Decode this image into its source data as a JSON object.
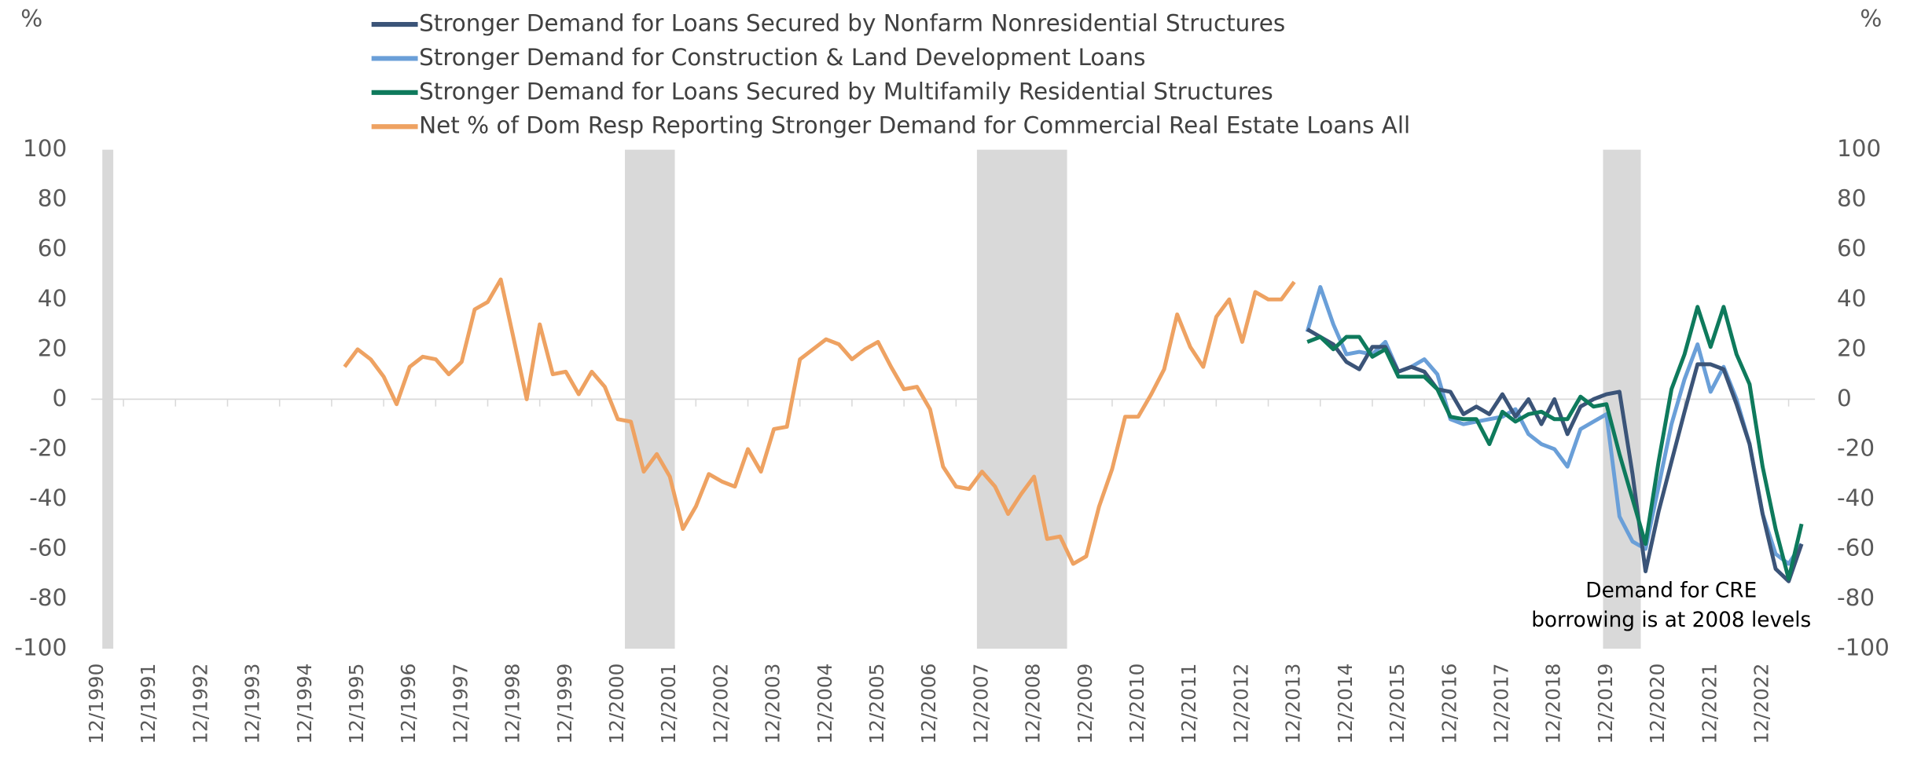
{
  "chart_data": {
    "type": "line",
    "y_label": "%",
    "y2_label": "%",
    "categories": [
      "12/1990",
      null,
      null,
      null,
      "12/1991",
      null,
      null,
      null,
      "12/1992",
      null,
      null,
      null,
      "12/1993",
      null,
      null,
      null,
      "12/1994",
      null,
      null,
      null,
      "12/1995",
      null,
      null,
      null,
      "12/1996",
      null,
      null,
      null,
      "12/1997",
      null,
      null,
      null,
      "12/1998",
      null,
      null,
      null,
      "12/1999",
      null,
      null,
      null,
      "12/2000",
      null,
      null,
      null,
      "12/2001",
      null,
      null,
      null,
      "12/2002",
      null,
      null,
      null,
      "12/2003",
      null,
      null,
      null,
      "12/2004",
      null,
      null,
      null,
      "12/2005",
      null,
      null,
      null,
      "12/2006",
      null,
      null,
      null,
      "12/2007",
      null,
      null,
      null,
      "12/2008",
      null,
      null,
      null,
      "12/2009",
      null,
      null,
      null,
      "12/2010",
      null,
      null,
      null,
      "12/2011",
      null,
      null,
      null,
      "12/2012",
      null,
      null,
      null,
      "12/2013",
      null,
      null,
      null,
      "12/2014",
      null,
      null,
      null,
      "12/2015",
      null,
      null,
      null,
      "12/2016",
      null,
      null,
      null,
      "12/2017",
      null,
      null,
      null,
      "12/2018",
      null,
      null,
      null,
      "12/2019",
      null,
      null,
      null,
      "12/2020",
      null,
      null,
      null,
      "12/2021",
      null,
      null,
      null,
      "12/2022",
      null,
      null,
      null
    ],
    "series": [
      {
        "name": "Stronger Demand for Loans Secured by Nonfarm Nonresidential Structures",
        "color": "#3b5478",
        "values": [
          null,
          null,
          null,
          null,
          null,
          null,
          null,
          null,
          null,
          null,
          null,
          null,
          null,
          null,
          null,
          null,
          null,
          null,
          null,
          null,
          null,
          null,
          null,
          null,
          null,
          null,
          null,
          null,
          null,
          null,
          null,
          null,
          null,
          null,
          null,
          null,
          null,
          null,
          null,
          null,
          null,
          null,
          null,
          null,
          null,
          null,
          null,
          null,
          null,
          null,
          null,
          null,
          null,
          null,
          null,
          null,
          null,
          null,
          null,
          null,
          null,
          null,
          null,
          null,
          null,
          null,
          null,
          null,
          null,
          null,
          null,
          null,
          null,
          null,
          null,
          null,
          null,
          null,
          null,
          null,
          null,
          null,
          null,
          null,
          null,
          null,
          null,
          null,
          null,
          null,
          null,
          null,
          null,
          28,
          25,
          22,
          15,
          12,
          21,
          21,
          11,
          13,
          11,
          4,
          3,
          -6,
          -3,
          -6,
          2,
          -7,
          0,
          -10,
          0,
          -14,
          -3,
          0,
          2,
          3,
          -30,
          -69,
          -45,
          -25,
          -5,
          14,
          14,
          12,
          -2,
          -18,
          -46,
          -68,
          -73,
          -58
        ]
      },
      {
        "name": "Stronger Demand for Construction & Land Development Loans",
        "color": "#6a9fd8",
        "values": [
          null,
          null,
          null,
          null,
          null,
          null,
          null,
          null,
          null,
          null,
          null,
          null,
          null,
          null,
          null,
          null,
          null,
          null,
          null,
          null,
          null,
          null,
          null,
          null,
          null,
          null,
          null,
          null,
          null,
          null,
          null,
          null,
          null,
          null,
          null,
          null,
          null,
          null,
          null,
          null,
          null,
          null,
          null,
          null,
          null,
          null,
          null,
          null,
          null,
          null,
          null,
          null,
          null,
          null,
          null,
          null,
          null,
          null,
          null,
          null,
          null,
          null,
          null,
          null,
          null,
          null,
          null,
          null,
          null,
          null,
          null,
          null,
          null,
          null,
          null,
          null,
          null,
          null,
          null,
          null,
          null,
          null,
          null,
          null,
          null,
          null,
          null,
          null,
          null,
          null,
          null,
          null,
          null,
          27,
          45,
          30,
          18,
          19,
          18,
          23,
          11,
          13,
          16,
          10,
          -8,
          -10,
          -9,
          -8,
          -7,
          -4,
          -14,
          -18,
          -20,
          -27,
          -12,
          -9,
          -6,
          -47,
          -57,
          -60,
          -35,
          -10,
          8,
          22,
          3,
          13,
          0,
          -18,
          -46,
          -62,
          -66,
          -58
        ]
      },
      {
        "name": "Stronger Demand for Loans Secured by Multifamily Residential Structures",
        "color": "#0e7a5c",
        "values": [
          null,
          null,
          null,
          null,
          null,
          null,
          null,
          null,
          null,
          null,
          null,
          null,
          null,
          null,
          null,
          null,
          null,
          null,
          null,
          null,
          null,
          null,
          null,
          null,
          null,
          null,
          null,
          null,
          null,
          null,
          null,
          null,
          null,
          null,
          null,
          null,
          null,
          null,
          null,
          null,
          null,
          null,
          null,
          null,
          null,
          null,
          null,
          null,
          null,
          null,
          null,
          null,
          null,
          null,
          null,
          null,
          null,
          null,
          null,
          null,
          null,
          null,
          null,
          null,
          null,
          null,
          null,
          null,
          null,
          null,
          null,
          null,
          null,
          null,
          null,
          null,
          null,
          null,
          null,
          null,
          null,
          null,
          null,
          null,
          null,
          null,
          null,
          null,
          null,
          null,
          null,
          null,
          null,
          23,
          25,
          20,
          25,
          25,
          17,
          20,
          9,
          9,
          9,
          4,
          -7,
          -8,
          -8,
          -18,
          -5,
          -9,
          -6,
          -5,
          -8,
          -8,
          1,
          -3,
          -2,
          -22,
          -40,
          -58,
          -25,
          4,
          18,
          37,
          21,
          37,
          18,
          6,
          -27,
          -52,
          -72,
          -50
        ]
      },
      {
        "name": "Net % of Dom Resp Reporting Stronger Demand for Commercial Real Estate Loans All",
        "color": "#eea262",
        "values": [
          null,
          null,
          null,
          null,
          null,
          null,
          null,
          null,
          null,
          null,
          null,
          null,
          null,
          null,
          null,
          null,
          null,
          null,
          null,
          13,
          20,
          16,
          9,
          -2,
          13,
          17,
          16,
          10,
          15,
          36,
          39,
          48,
          24,
          0,
          30,
          10,
          11,
          2,
          11,
          5,
          -8,
          -9,
          -29,
          -22,
          -31,
          -52,
          -43,
          -30,
          -33,
          -35,
          -20,
          -29,
          -12,
          -11,
          16,
          20,
          24,
          22,
          16,
          20,
          23,
          13,
          4,
          5,
          -4,
          -27,
          -35,
          -36,
          -29,
          -35,
          -46,
          -38,
          -31,
          -56,
          -55,
          -66,
          -63,
          -43,
          -28,
          -7,
          -7,
          2,
          12,
          34,
          21,
          13,
          33,
          40,
          23,
          43,
          40,
          40,
          47,
          null,
          null,
          null,
          null,
          null,
          null,
          null,
          null,
          null,
          null,
          null,
          null,
          null,
          null,
          null,
          null,
          null,
          null,
          null,
          null,
          null,
          null,
          null,
          null,
          null,
          null,
          null,
          null,
          null,
          null,
          null,
          null,
          null,
          null,
          null,
          null,
          null,
          null,
          null
        ]
      }
    ],
    "ylim": [
      -100,
      100
    ],
    "yticks": [
      -100,
      -80,
      -60,
      -40,
      -20,
      0,
      20,
      40,
      60,
      80,
      100
    ],
    "y2lim": [
      -100,
      100
    ],
    "y2ticks": [
      -100,
      -80,
      -60,
      -40,
      -20,
      0,
      20,
      40,
      60,
      80,
      100
    ],
    "annotations": [
      "Demand for CRE",
      "borrowing is at 2008 levels"
    ],
    "grid": false
  }
}
